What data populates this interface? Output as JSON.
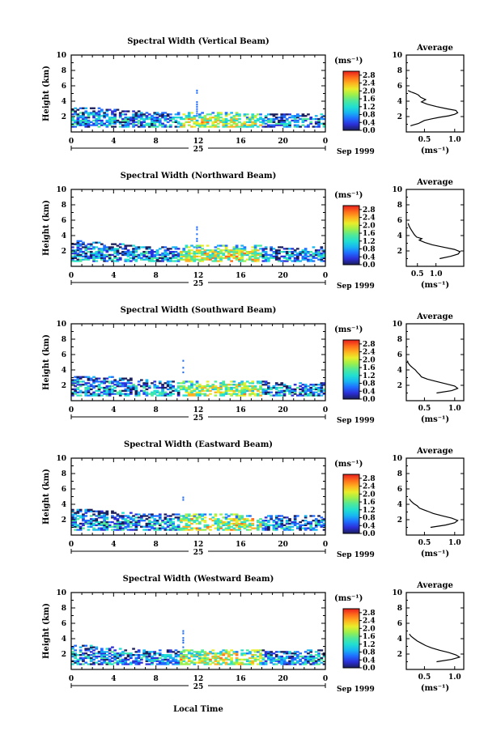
{
  "figure": {
    "xlabel": "Local Time",
    "date_month": "Sep 1999",
    "day_label": "25",
    "ylabel": "Height (km)",
    "unit_label": "(ms⁻¹)",
    "avg_title": "Average",
    "avg_xlabel": "(ms⁻¹)"
  },
  "colorbar": {
    "ticks": [
      "0.0",
      "0.4",
      "0.8",
      "1.2",
      "1.6",
      "2.0",
      "2.4",
      "2.8"
    ],
    "colors": [
      "#1a1e5a",
      "#2b2fd8",
      "#1f6dff",
      "#17b6f2",
      "#21e0d0",
      "#4fe89a",
      "#9af04c",
      "#e8ee2a",
      "#ffb01e",
      "#ff6a1a",
      "#e81e1e"
    ]
  },
  "chart_data": [
    {
      "type": "heatmap",
      "title": "Spectral Width (Vertical Beam)",
      "xlim": [
        0,
        24
      ],
      "x_ticks": [
        "0",
        "4",
        "8",
        "12",
        "16",
        "20",
        "0"
      ],
      "ylim": [
        0,
        10
      ],
      "y_ticks": [
        "2",
        "4",
        "6",
        "8",
        "10"
      ],
      "clim": [
        0,
        3.0
      ],
      "layer_top_km": [
        [
          0,
          3.2
        ],
        [
          4,
          2.9
        ],
        [
          8,
          2.5
        ],
        [
          12,
          2.6
        ],
        [
          16,
          2.4
        ],
        [
          20,
          2.2
        ],
        [
          24,
          2.3
        ]
      ],
      "spike": {
        "time_h": 11.8,
        "height_km": [
          2.0,
          5.3
        ]
      },
      "avg_profile": {
        "title": "Average",
        "xlim": [
          0.2,
          1.15
        ],
        "x_ticks": [
          "0.5",
          "1.0"
        ],
        "ylim": [
          0,
          10
        ],
        "x": [
          0.27,
          0.4,
          0.45,
          0.5,
          0.62,
          0.75,
          0.9,
          1.0,
          1.05,
          1.02,
          0.88,
          0.7,
          0.55,
          0.45,
          0.52,
          0.44,
          0.4,
          0.35,
          0.28,
          0.25,
          0.23
        ],
        "height_km": [
          0.8,
          1.1,
          1.3,
          1.5,
          1.7,
          1.9,
          2.1,
          2.3,
          2.5,
          2.8,
          3.0,
          3.3,
          3.6,
          3.9,
          4.2,
          4.5,
          4.8,
          5.0,
          5.2,
          5.3,
          5.4
        ]
      }
    },
    {
      "type": "heatmap",
      "title": "Spectral Width (Northward Beam)",
      "xlim": [
        0,
        24
      ],
      "x_ticks": [
        "0",
        "4",
        "8",
        "12",
        "16",
        "20",
        "0"
      ],
      "ylim": [
        0,
        10
      ],
      "y_ticks": [
        "2",
        "4",
        "6",
        "8",
        "10"
      ],
      "clim": [
        0,
        3.0
      ],
      "layer_top_km": [
        [
          0,
          3.3
        ],
        [
          4,
          2.9
        ],
        [
          8,
          2.4
        ],
        [
          12,
          2.7
        ],
        [
          16,
          2.8
        ],
        [
          20,
          2.4
        ],
        [
          24,
          2.6
        ]
      ],
      "spike": {
        "time_h": 11.8,
        "height_km": [
          2.3,
          5.0
        ]
      },
      "avg_profile": {
        "title": "Average",
        "xlim": [
          0.2,
          1.75
        ],
        "x_ticks": [
          "0.5",
          "1.0"
        ],
        "ylim": [
          0,
          10
        ],
        "x": [
          1.1,
          1.4,
          1.6,
          1.65,
          1.5,
          1.2,
          0.9,
          0.7,
          0.55,
          0.62,
          0.48,
          0.42,
          0.38,
          0.34,
          0.3,
          0.27,
          0.25
        ],
        "height_km": [
          1.0,
          1.3,
          1.6,
          1.9,
          2.2,
          2.5,
          2.8,
          3.1,
          3.4,
          3.6,
          3.8,
          4.1,
          4.4,
          4.7,
          5.0,
          5.3,
          5.6
        ]
      }
    },
    {
      "type": "heatmap",
      "title": "Spectral Width (Southward Beam)",
      "xlim": [
        0,
        24
      ],
      "x_ticks": [
        "0",
        "4",
        "8",
        "12",
        "16",
        "20",
        "0"
      ],
      "ylim": [
        0,
        10
      ],
      "y_ticks": [
        "2",
        "4",
        "6",
        "8",
        "10"
      ],
      "clim": [
        0,
        3.0
      ],
      "layer_top_km": [
        [
          0,
          3.2
        ],
        [
          4,
          3.0
        ],
        [
          8,
          2.5
        ],
        [
          12,
          2.6
        ],
        [
          16,
          2.6
        ],
        [
          20,
          2.3
        ],
        [
          24,
          2.4
        ]
      ],
      "spike": {
        "time_h": 10.5,
        "height_km": [
          3.6,
          5.2
        ]
      },
      "avg_profile": {
        "title": "Average",
        "xlim": [
          0.2,
          1.15
        ],
        "x_ticks": [
          "0.5",
          "1.0"
        ],
        "ylim": [
          0,
          10
        ],
        "x": [
          0.7,
          0.95,
          1.05,
          1.0,
          0.85,
          0.7,
          0.55,
          0.45,
          0.42,
          0.38,
          0.35,
          0.3,
          0.26,
          0.23,
          0.22
        ],
        "height_km": [
          1.0,
          1.3,
          1.6,
          1.9,
          2.2,
          2.5,
          2.8,
          3.1,
          3.4,
          3.7,
          4.0,
          4.3,
          4.6,
          4.9,
          5.2
        ]
      }
    },
    {
      "type": "heatmap",
      "title": "Spectral Width (Eastward Beam)",
      "xlim": [
        0,
        24
      ],
      "x_ticks": [
        "0",
        "4",
        "8",
        "12",
        "16",
        "20",
        "0"
      ],
      "ylim": [
        0,
        10
      ],
      "y_ticks": [
        "2",
        "4",
        "6",
        "8",
        "10"
      ],
      "clim": [
        0,
        3.0
      ],
      "layer_top_km": [
        [
          0,
          3.4
        ],
        [
          4,
          3.0
        ],
        [
          8,
          2.6
        ],
        [
          12,
          2.8
        ],
        [
          16,
          2.7
        ],
        [
          20,
          2.4
        ],
        [
          24,
          2.6
        ]
      ],
      "spike": {
        "time_h": 10.5,
        "height_km": [
          4.5,
          5.0
        ]
      },
      "avg_profile": {
        "title": "Average",
        "xlim": [
          0.2,
          1.15
        ],
        "x_ticks": [
          "0.5",
          "1.0"
        ],
        "ylim": [
          0,
          10
        ],
        "x": [
          0.6,
          0.85,
          1.0,
          1.05,
          0.95,
          0.8,
          0.65,
          0.55,
          0.48,
          0.42,
          0.38,
          0.32,
          0.28,
          0.25
        ],
        "height_km": [
          1.0,
          1.3,
          1.6,
          1.9,
          2.2,
          2.5,
          2.8,
          3.1,
          3.3,
          3.5,
          3.8,
          4.1,
          4.4,
          4.7
        ]
      }
    },
    {
      "type": "heatmap",
      "title": "Spectral Width (Westward Beam)",
      "xlim": [
        0,
        24
      ],
      "x_ticks": [
        "0",
        "4",
        "8",
        "12",
        "16",
        "20",
        "0"
      ],
      "ylim": [
        0,
        10
      ],
      "y_ticks": [
        "2",
        "4",
        "6",
        "8",
        "10"
      ],
      "clim": [
        0,
        3.0
      ],
      "layer_top_km": [
        [
          0,
          3.2
        ],
        [
          4,
          2.8
        ],
        [
          8,
          2.4
        ],
        [
          12,
          2.6
        ],
        [
          16,
          2.6
        ],
        [
          20,
          2.3
        ],
        [
          24,
          2.5
        ]
      ],
      "spike": {
        "time_h": 10.5,
        "height_km": [
          2.5,
          5.0
        ]
      },
      "avg_profile": {
        "title": "Average",
        "xlim": [
          0.2,
          1.15
        ],
        "x_ticks": [
          "0.5",
          "1.0"
        ],
        "ylim": [
          0,
          10
        ],
        "x": [
          0.7,
          0.95,
          1.08,
          1.02,
          0.9,
          0.75,
          0.62,
          0.52,
          0.45,
          0.38,
          0.33,
          0.28,
          0.25
        ],
        "height_km": [
          1.0,
          1.3,
          1.6,
          1.9,
          2.2,
          2.5,
          2.8,
          3.1,
          3.4,
          3.7,
          4.0,
          4.3,
          4.6
        ]
      }
    }
  ]
}
